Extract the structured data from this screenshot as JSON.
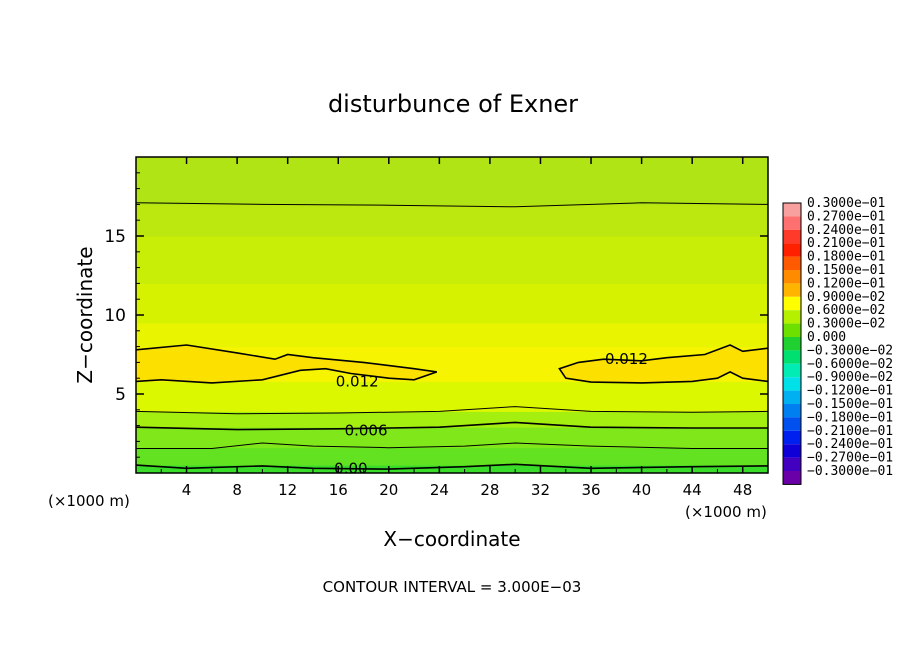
{
  "chart_data": {
    "type": "contour",
    "title": "disturbunce of Exner",
    "xlabel": "X−coordinate",
    "ylabel": "Z−coordinate",
    "x_unit_left": "(×1000 m)",
    "x_unit_right": "(×1000 m)",
    "footer": "CONTOUR INTERVAL = 3.000E−03",
    "xlim": [
      0,
      50
    ],
    "ylim": [
      0,
      20
    ],
    "xticks": [
      "4",
      "8",
      "12",
      "16",
      "20",
      "24",
      "28",
      "32",
      "36",
      "40",
      "44",
      "48"
    ],
    "yticks": [
      "5",
      "10",
      "15"
    ],
    "contour_labels": [
      {
        "text": "0.012",
        "x": 17.5,
        "y": 5.8
      },
      {
        "text": "0.012",
        "x": 38.8,
        "y": 7.2
      },
      {
        "text": "0.006",
        "x": 18.2,
        "y": 2.7
      },
      {
        "text": "0.00",
        "x": 17.0,
        "y": 0.3
      }
    ],
    "contour_lines": [
      {
        "level": 0.015,
        "points": [
          [
            0,
            17.1
          ],
          [
            10,
            17.0
          ],
          [
            20,
            16.95
          ],
          [
            30,
            16.85
          ],
          [
            40,
            17.1
          ],
          [
            50,
            17.0
          ]
        ]
      },
      {
        "level": 0.012,
        "points": [
          [
            0,
            7.8
          ],
          [
            4,
            8.1
          ],
          [
            8,
            7.6
          ],
          [
            11,
            7.2
          ],
          [
            12,
            7.5
          ],
          [
            14,
            7.3
          ],
          [
            18,
            7.0
          ],
          [
            22,
            6.6
          ],
          [
            23.8,
            6.4
          ],
          [
            22,
            5.9
          ],
          [
            20,
            6.0
          ],
          [
            17,
            6.3
          ],
          [
            15,
            6.6
          ],
          [
            13,
            6.5
          ],
          [
            10,
            5.9
          ],
          [
            6,
            5.7
          ],
          [
            2,
            5.9
          ],
          [
            0,
            5.8
          ]
        ]
      },
      {
        "level": 0.012,
        "points": [
          [
            50,
            7.9
          ],
          [
            48,
            7.7
          ],
          [
            47,
            8.1
          ],
          [
            45,
            7.5
          ],
          [
            42,
            7.3
          ],
          [
            40,
            7.1
          ],
          [
            37,
            7.2
          ],
          [
            35,
            7.0
          ],
          [
            33.5,
            6.6
          ],
          [
            34,
            6.0
          ],
          [
            36,
            5.75
          ],
          [
            40,
            5.7
          ],
          [
            44,
            5.8
          ],
          [
            46,
            6.0
          ],
          [
            47,
            6.4
          ],
          [
            48,
            6.0
          ],
          [
            50,
            5.8
          ]
        ]
      },
      {
        "level": 0.009,
        "points": [
          [
            0,
            3.9
          ],
          [
            8,
            3.75
          ],
          [
            16,
            3.8
          ],
          [
            24,
            3.9
          ],
          [
            30,
            4.2
          ],
          [
            36,
            3.9
          ],
          [
            44,
            3.85
          ],
          [
            50,
            3.9
          ]
        ]
      },
      {
        "level": 0.006,
        "points": [
          [
            0,
            2.9
          ],
          [
            8,
            2.75
          ],
          [
            16,
            2.8
          ],
          [
            24,
            2.9
          ],
          [
            30,
            3.2
          ],
          [
            36,
            2.9
          ],
          [
            44,
            2.85
          ],
          [
            50,
            2.85
          ]
        ]
      },
      {
        "level": 0.003,
        "points": [
          [
            0,
            1.55
          ],
          [
            6,
            1.55
          ],
          [
            10,
            1.9
          ],
          [
            14,
            1.7
          ],
          [
            20,
            1.6
          ],
          [
            26,
            1.7
          ],
          [
            30,
            1.9
          ],
          [
            36,
            1.7
          ],
          [
            44,
            1.55
          ],
          [
            50,
            1.55
          ]
        ]
      },
      {
        "level": 0.0,
        "points": [
          [
            0,
            0.5
          ],
          [
            4,
            0.3
          ],
          [
            10,
            0.45
          ],
          [
            14,
            0.3
          ],
          [
            20,
            0.25
          ],
          [
            26,
            0.4
          ],
          [
            30,
            0.55
          ],
          [
            36,
            0.3
          ],
          [
            44,
            0.4
          ],
          [
            50,
            0.45
          ]
        ]
      }
    ],
    "colorbar": {
      "labels": [
        "0.3000e−01",
        "0.2700e−01",
        "0.2400e−01",
        "0.2100e−01",
        "0.1800e−01",
        "0.1500e−01",
        "0.1200e−01",
        "0.9000e−02",
        "0.6000e−02",
        "0.3000e−02",
        "0.000",
        "−0.3000e−02",
        "−0.6000e−02",
        "−0.9000e−02",
        "−0.1200e−01",
        "−0.1500e−01",
        "−0.1800e−01",
        "−0.2100e−01",
        "−0.2400e−01",
        "−0.2700e−01",
        "−0.3000e−01"
      ],
      "colors": [
        "#f8a0a0",
        "#ff7070",
        "#ff3a2a",
        "#ff2000",
        "#ff5a00",
        "#ff8c00",
        "#ffb400",
        "#ffff00",
        "#b4f000",
        "#6ee000",
        "#20d030",
        "#00e070",
        "#00ecb4",
        "#00e0e8",
        "#00b0f0",
        "#0080f0",
        "#0050f0",
        "#0020f0",
        "#1000d8",
        "#4400c0",
        "#6a00a8"
      ]
    },
    "bands": [
      {
        "y": [
          0,
          0.5
        ],
        "color": "#3adc2a"
      },
      {
        "y": [
          0.5,
          1.6
        ],
        "color": "#62e220"
      },
      {
        "y": [
          1.6,
          2.9
        ],
        "color": "#80e81a"
      },
      {
        "y": [
          2.9,
          3.9
        ],
        "color": "#a4ee10"
      },
      {
        "y": [
          3.9,
          5.8
        ],
        "color": "#dcf800"
      },
      {
        "y": [
          5.8,
          8.0
        ],
        "color": "#f6f400"
      },
      {
        "y": [
          8.0,
          9.5
        ],
        "color": "#e8f400"
      },
      {
        "y": [
          9.5,
          12.0
        ],
        "color": "#d6f200"
      },
      {
        "y": [
          12.0,
          15.0
        ],
        "color": "#c8ee08"
      },
      {
        "y": [
          15.0,
          17.0
        ],
        "color": "#bce810"
      },
      {
        "y": [
          17.0,
          20.0
        ],
        "color": "#b0e414"
      }
    ],
    "core": {
      "x": [
        0,
        50
      ],
      "y": [
        5.8,
        8.0
      ],
      "color": "#fce000"
    }
  }
}
